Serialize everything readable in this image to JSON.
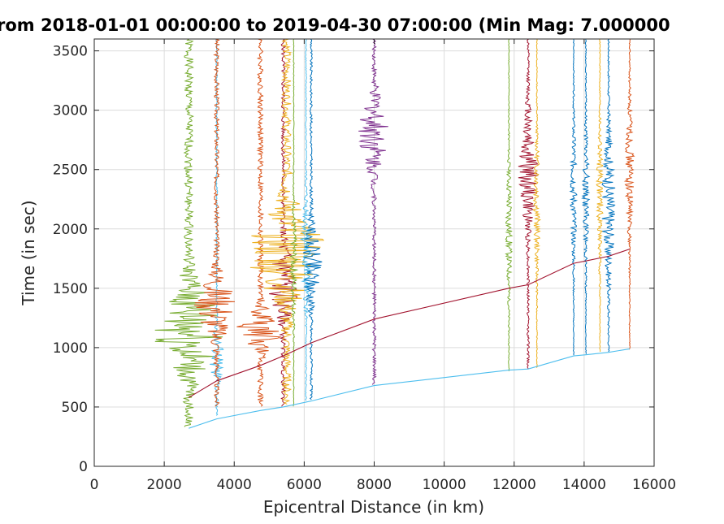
{
  "chart_data": {
    "type": "line",
    "title": "rom 2018-01-01 00:00:00 to 2019-04-30 07:00:00 (Min Mag: 7.000000",
    "xlabel": "Epicentral Distance (in km)",
    "ylabel": "Time (in sec)",
    "xlim": [
      0,
      16000
    ],
    "ylim": [
      0,
      3600
    ],
    "xticks": [
      "0",
      "2000",
      "4000",
      "6000",
      "8000",
      "10000",
      "12000",
      "14000",
      "16000"
    ],
    "yticks": [
      "0",
      "500",
      "1000",
      "1500",
      "2000",
      "2500",
      "3000",
      "3500"
    ],
    "grid": true,
    "traces": [
      {
        "dist": 2700,
        "color": "#77AC30",
        "start": 330,
        "amp": 45,
        "burst_t": 1150,
        "burst_w": 550,
        "seed": 1
      },
      {
        "dist": 3500,
        "color": "#4DBEEE",
        "start": 420,
        "amp": 8,
        "burst_t": 900,
        "burst_w": 400,
        "seed": 2
      },
      {
        "dist": 3500,
        "color": "#D95319",
        "start": 500,
        "amp": 25,
        "burst_t": 1350,
        "burst_w": 400,
        "seed": 3
      },
      {
        "dist": 4750,
        "color": "#D95319",
        "start": 500,
        "amp": 28,
        "burst_t": 1150,
        "burst_w": 250,
        "seed": 4
      },
      {
        "dist": 5400,
        "color": "#A2142F",
        "start": 500,
        "amp": 20,
        "burst_t": 1550,
        "burst_w": 450,
        "seed": 5
      },
      {
        "dist": 5500,
        "color": "#EDB120",
        "start": 520,
        "amp": 45,
        "burst_t": 1800,
        "burst_w": 600,
        "seed": 6
      },
      {
        "dist": 5700,
        "color": "#77AC30",
        "start": 500,
        "amp": 4,
        "burst_t": 1700,
        "burst_w": 700,
        "seed": 7
      },
      {
        "dist": 6050,
        "color": "#4DBEEE",
        "start": 550,
        "amp": 6,
        "burst_t": 1800,
        "burst_w": 700,
        "seed": 8
      },
      {
        "dist": 6200,
        "color": "#0072BD",
        "start": 560,
        "amp": 12,
        "burst_t": 1700,
        "burst_w": 500,
        "seed": 9
      },
      {
        "dist": 8000,
        "color": "#7E2F8E",
        "start": 680,
        "amp": 18,
        "burst_t": 2800,
        "burst_w": 500,
        "seed": 10
      },
      {
        "dist": 11850,
        "color": "#77AC30",
        "start": 800,
        "amp": 4,
        "burst_t": 2000,
        "burst_w": 900,
        "seed": 11
      },
      {
        "dist": 12400,
        "color": "#A2142F",
        "start": 820,
        "amp": 12,
        "burst_t": 2500,
        "burst_w": 700,
        "seed": 12
      },
      {
        "dist": 12650,
        "color": "#EDB120",
        "start": 830,
        "amp": 4,
        "burst_t": 2200,
        "burst_w": 900,
        "seed": 13
      },
      {
        "dist": 13700,
        "color": "#0072BD",
        "start": 930,
        "amp": 4,
        "burst_t": 2300,
        "burst_w": 900,
        "seed": 14
      },
      {
        "dist": 14050,
        "color": "#0072BD",
        "start": 940,
        "amp": 4,
        "burst_t": 2300,
        "burst_w": 900,
        "seed": 15
      },
      {
        "dist": 14450,
        "color": "#EDB120",
        "start": 960,
        "amp": 4,
        "burst_t": 2300,
        "burst_w": 900,
        "seed": 16
      },
      {
        "dist": 14700,
        "color": "#0072BD",
        "start": 960,
        "amp": 8,
        "burst_t": 2200,
        "burst_w": 900,
        "seed": 17
      },
      {
        "dist": 15300,
        "color": "#D95319",
        "start": 980,
        "amp": 5,
        "burst_t": 2500,
        "burst_w": 900,
        "seed": 18
      }
    ],
    "travel_time_curves": [
      {
        "color": "#4DBEEE",
        "points": [
          [
            2700,
            320
          ],
          [
            3500,
            400
          ],
          [
            4750,
            470
          ],
          [
            5400,
            500
          ],
          [
            6200,
            550
          ],
          [
            8000,
            680
          ],
          [
            11850,
            810
          ],
          [
            12400,
            820
          ],
          [
            13700,
            930
          ],
          [
            14050,
            940
          ],
          [
            14700,
            960
          ],
          [
            15300,
            990
          ]
        ]
      },
      {
        "color": "#A2142F",
        "points": [
          [
            2700,
            580
          ],
          [
            3500,
            720
          ],
          [
            4750,
            850
          ],
          [
            5400,
            930
          ],
          [
            6200,
            1040
          ],
          [
            8000,
            1240
          ],
          [
            11850,
            1500
          ],
          [
            12400,
            1530
          ],
          [
            13700,
            1710
          ],
          [
            14050,
            1730
          ],
          [
            14700,
            1770
          ],
          [
            15300,
            1830
          ]
        ]
      }
    ]
  }
}
